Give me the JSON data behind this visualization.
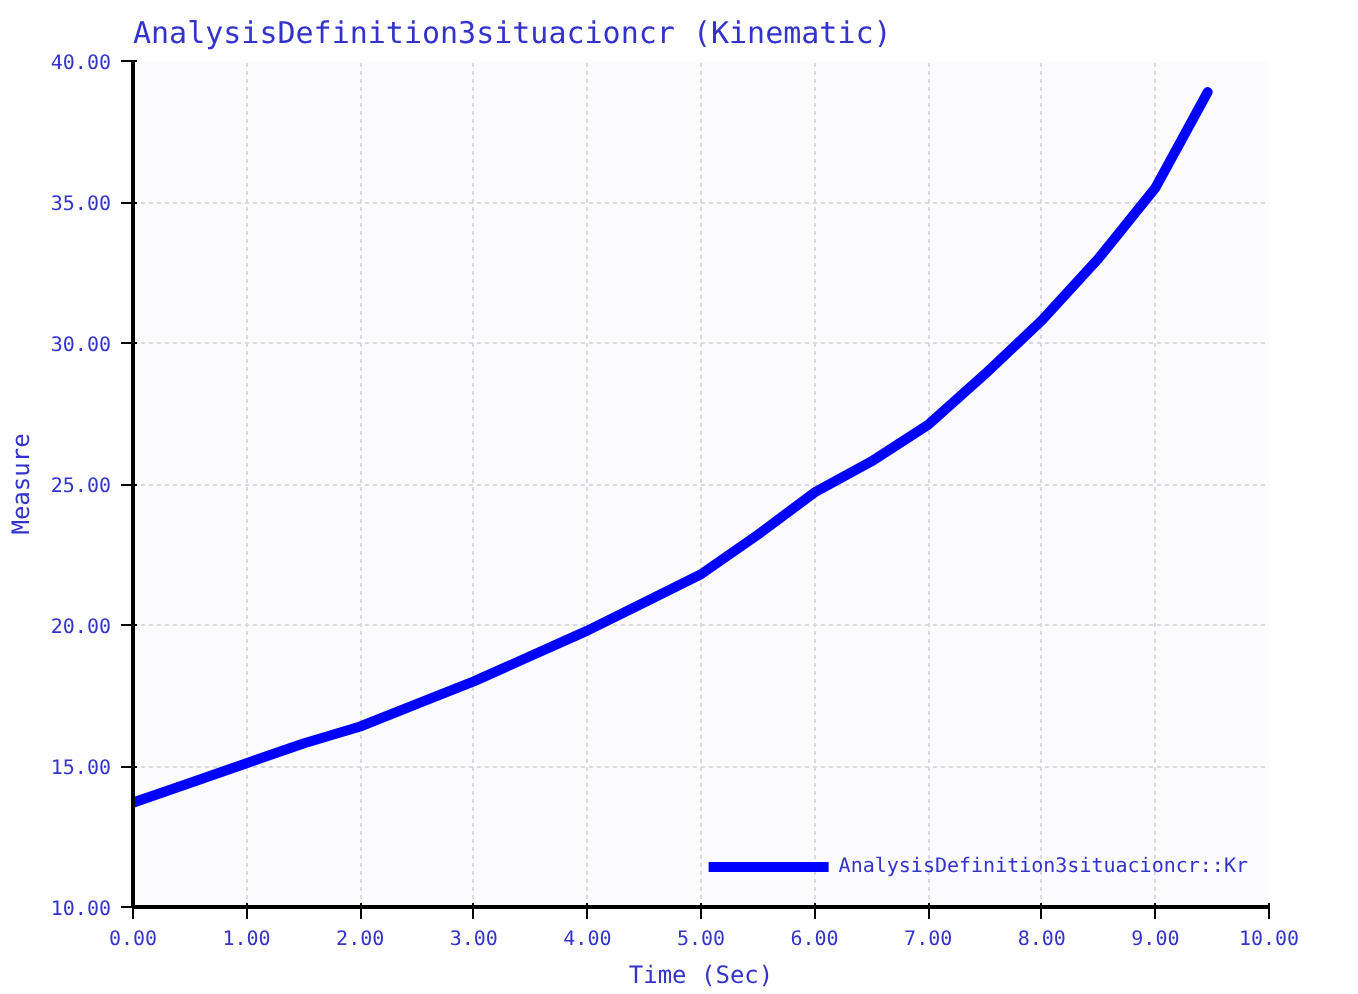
{
  "chart_data": {
    "type": "line",
    "title": "AnalysisDefinition3situacioncr (Kinematic)",
    "xlabel": "Time (Sec)",
    "ylabel": "Measure",
    "x": [
      0,
      0.5,
      1,
      1.5,
      2,
      2.5,
      3,
      3.5,
      4,
      4.5,
      5,
      5.5,
      6,
      6.5,
      7,
      7.5,
      8,
      8.5,
      9,
      9.46
    ],
    "series": [
      {
        "name": "AnalysisDefinition3situacioncr::Kr",
        "color": "#0000ff",
        "values": [
          13.7,
          14.4,
          15.1,
          15.8,
          16.4,
          17.2,
          18.0,
          18.9,
          19.8,
          20.8,
          21.8,
          23.2,
          24.7,
          25.8,
          27.1,
          28.9,
          30.8,
          33.0,
          35.5,
          38.9
        ]
      }
    ],
    "xlim": [
      0,
      10
    ],
    "ylim": [
      10,
      40
    ],
    "xticks": [
      {
        "value": 0,
        "label": "0.00"
      },
      {
        "value": 1,
        "label": "1.00"
      },
      {
        "value": 2,
        "label": "2.00"
      },
      {
        "value": 3,
        "label": "3.00"
      },
      {
        "value": 4,
        "label": "4.00"
      },
      {
        "value": 5,
        "label": "5.00"
      },
      {
        "value": 6,
        "label": "6.00"
      },
      {
        "value": 7,
        "label": "7.00"
      },
      {
        "value": 8,
        "label": "8.00"
      },
      {
        "value": 9,
        "label": "9.00"
      },
      {
        "value": 10,
        "label": "10.00"
      }
    ],
    "yticks": [
      {
        "value": 10,
        "label": "10.00"
      },
      {
        "value": 15,
        "label": "15.00"
      },
      {
        "value": 20,
        "label": "20.00"
      },
      {
        "value": 25,
        "label": "25.00"
      },
      {
        "value": 30,
        "label": "30.00"
      },
      {
        "value": 35,
        "label": "35.00"
      },
      {
        "value": 40,
        "label": "40.00"
      }
    ],
    "grid": true,
    "legend": "bottom right",
    "line_style": "solid"
  }
}
